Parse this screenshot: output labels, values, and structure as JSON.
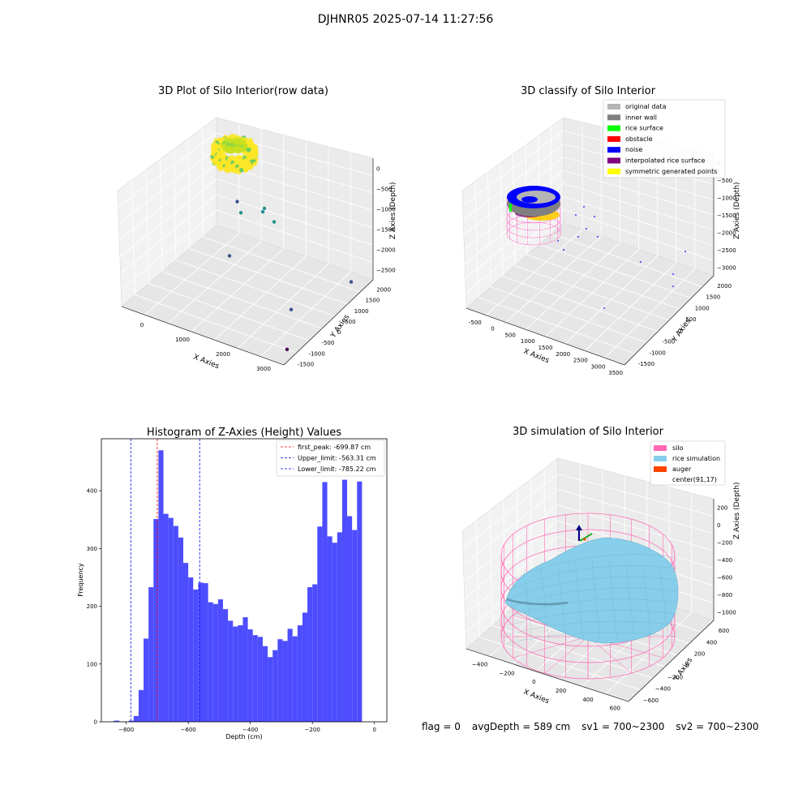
{
  "header": {
    "title": "DJHNR05 2025-07-14 11:27:56"
  },
  "chart_data": [
    {
      "type": "scatter",
      "title": "3D Plot of Silo Interior(row data)",
      "xlabel": "X Axies",
      "ylabel": "Y Axies",
      "zlabel": "Z Axies (Depth)",
      "x_ticks": [
        "0",
        "1000",
        "2000",
        "3000"
      ],
      "y_ticks": [
        "-1500",
        "-1000",
        "-500",
        "0",
        "500",
        "1000",
        "1500",
        "2000"
      ],
      "z_ticks": [
        "0",
        "−500",
        "−1000",
        "−1500",
        "−2000",
        "−2500"
      ],
      "colormap": [
        "#440154",
        "#3b528b",
        "#21908d",
        "#5dc963",
        "#fde725"
      ],
      "outlier_points": [
        {
          "x": 250,
          "y": 1800,
          "z": -1800
        },
        {
          "x": 700,
          "y": 1200,
          "z": -1600
        },
        {
          "x": 1100,
          "y": 1500,
          "z": -1500
        },
        {
          "x": 1300,
          "y": 1100,
          "z": -1300
        },
        {
          "x": 1700,
          "y": 900,
          "z": -1300
        },
        {
          "x": 900,
          "y": 400,
          "z": -2200
        },
        {
          "x": 2900,
          "y": -400,
          "z": -2400
        },
        {
          "x": 3300,
          "y": 1400,
          "z": -2500
        },
        {
          "x": 3400,
          "y": -1400,
          "z": -2700
        }
      ]
    },
    {
      "type": "scatter",
      "title": "3D classify of Silo Interior",
      "xlabel": "X Axies",
      "ylabel": "Y Axies",
      "zlabel": "Z Axies (Depth)",
      "x_ticks": [
        "-500",
        "0",
        "500",
        "1000",
        "1500",
        "2000",
        "2500",
        "3000",
        "3500"
      ],
      "y_ticks": [
        "-1500",
        "-1000",
        "-500",
        "0",
        "500",
        "1000",
        "1500",
        "2000"
      ],
      "z_ticks": [
        "0",
        "−500",
        "−1000",
        "−1500",
        "−2000",
        "−2500",
        "−3000"
      ],
      "legend": [
        {
          "label": "original data",
          "color": "#b4b4b4"
        },
        {
          "label": "inner wall",
          "color": "#808080"
        },
        {
          "label": "rice surface",
          "color": "#00ff00"
        },
        {
          "label": "obstacle",
          "color": "#ff0000"
        },
        {
          "label": "noise",
          "color": "#0000ff"
        },
        {
          "label": "interpolated rice surface",
          "color": "#800080"
        },
        {
          "label": "symmetric generated points",
          "color": "#ffff00"
        }
      ]
    },
    {
      "type": "bar",
      "title": "Histogram of Z-Axies (Height) Values",
      "xlabel": "Depth (cm)",
      "ylabel": "Frequency",
      "xlim": [
        -880,
        40
      ],
      "ylim": [
        0,
        490
      ],
      "x_ticks": [
        -800,
        -600,
        -400,
        -200,
        0
      ],
      "y_ticks": [
        0,
        100,
        200,
        300,
        400
      ],
      "bar_color": "#4d4dff",
      "bins": [
        {
          "x0": -840,
          "x1": -822,
          "count": 2
        },
        {
          "x0": -792,
          "x1": -776,
          "count": 2
        },
        {
          "x0": -776,
          "x1": -760,
          "count": 10
        },
        {
          "x0": -760,
          "x1": -744,
          "count": 55
        },
        {
          "x0": -744,
          "x1": -728,
          "count": 144
        },
        {
          "x0": -728,
          "x1": -712,
          "count": 233
        },
        {
          "x0": -712,
          "x1": -696,
          "count": 351
        },
        {
          "x0": -696,
          "x1": -680,
          "count": 470
        },
        {
          "x0": -680,
          "x1": -664,
          "count": 360
        },
        {
          "x0": -664,
          "x1": -648,
          "count": 353
        },
        {
          "x0": -648,
          "x1": -632,
          "count": 339
        },
        {
          "x0": -632,
          "x1": -616,
          "count": 319
        },
        {
          "x0": -616,
          "x1": -600,
          "count": 275
        },
        {
          "x0": -600,
          "x1": -584,
          "count": 250
        },
        {
          "x0": -584,
          "x1": -568,
          "count": 229
        },
        {
          "x0": -568,
          "x1": -552,
          "count": 241
        },
        {
          "x0": -552,
          "x1": -536,
          "count": 240
        },
        {
          "x0": -536,
          "x1": -520,
          "count": 207
        },
        {
          "x0": -520,
          "x1": -504,
          "count": 204
        },
        {
          "x0": -504,
          "x1": -488,
          "count": 212
        },
        {
          "x0": -488,
          "x1": -472,
          "count": 195
        },
        {
          "x0": -472,
          "x1": -456,
          "count": 175
        },
        {
          "x0": -456,
          "x1": -440,
          "count": 165
        },
        {
          "x0": -440,
          "x1": -424,
          "count": 167
        },
        {
          "x0": -424,
          "x1": -408,
          "count": 181
        },
        {
          "x0": -408,
          "x1": -392,
          "count": 160
        },
        {
          "x0": -392,
          "x1": -376,
          "count": 150
        },
        {
          "x0": -376,
          "x1": -360,
          "count": 147
        },
        {
          "x0": -360,
          "x1": -344,
          "count": 131
        },
        {
          "x0": -344,
          "x1": -328,
          "count": 112
        },
        {
          "x0": -328,
          "x1": -312,
          "count": 124
        },
        {
          "x0": -312,
          "x1": -296,
          "count": 143
        },
        {
          "x0": -296,
          "x1": -280,
          "count": 140
        },
        {
          "x0": -280,
          "x1": -264,
          "count": 161
        },
        {
          "x0": -264,
          "x1": -248,
          "count": 148
        },
        {
          "x0": -248,
          "x1": -232,
          "count": 167
        },
        {
          "x0": -232,
          "x1": -216,
          "count": 189
        },
        {
          "x0": -216,
          "x1": -200,
          "count": 233
        },
        {
          "x0": -200,
          "x1": -184,
          "count": 238
        },
        {
          "x0": -184,
          "x1": -168,
          "count": 338
        },
        {
          "x0": -168,
          "x1": -152,
          "count": 415
        },
        {
          "x0": -152,
          "x1": -136,
          "count": 321
        },
        {
          "x0": -136,
          "x1": -120,
          "count": 310
        },
        {
          "x0": -120,
          "x1": -104,
          "count": 328
        },
        {
          "x0": -104,
          "x1": -88,
          "count": 419
        },
        {
          "x0": -88,
          "x1": -72,
          "count": 356
        },
        {
          "x0": -72,
          "x1": -56,
          "count": 332
        },
        {
          "x0": -56,
          "x1": -40,
          "count": 416
        }
      ],
      "vlines": [
        {
          "label": "first_peak: -699.87 cm",
          "x": -699.87,
          "color": "#ff0000"
        },
        {
          "label": "Upper_limit: -563.31 cm",
          "x": -563.31,
          "color": "#0000ff"
        },
        {
          "label": "Lower_limit: -785.22 cm",
          "x": -785.22,
          "color": "#0000ff"
        }
      ]
    },
    {
      "type": "other",
      "title": "3D simulation of Silo Interior",
      "xlabel": "X Axies",
      "ylabel": "Y Axies",
      "zlabel": "Z Axies (Depth)",
      "x_ticks": [
        "−400",
        "−200",
        "0",
        "200",
        "400",
        "600"
      ],
      "y_ticks": [
        "−600",
        "−400",
        "−200",
        "0",
        "200",
        "400",
        "600"
      ],
      "z_ticks": [
        "200",
        "0",
        "−200",
        "−400",
        "−600",
        "−800",
        "−1000"
      ],
      "legend": [
        {
          "label": "silo",
          "color": "#ff69b4"
        },
        {
          "label": "rice simulation",
          "color": "#87ceeb"
        },
        {
          "label": "auger",
          "color": "#ff4500"
        },
        {
          "label": "center(91,17)",
          "color": ""
        }
      ]
    }
  ],
  "status": {
    "flag": "flag = 0",
    "avg_depth": "avgDepth = 589 cm",
    "sv1": "sv1 = 700~2300",
    "sv2": "sv2 = 700~2300"
  }
}
